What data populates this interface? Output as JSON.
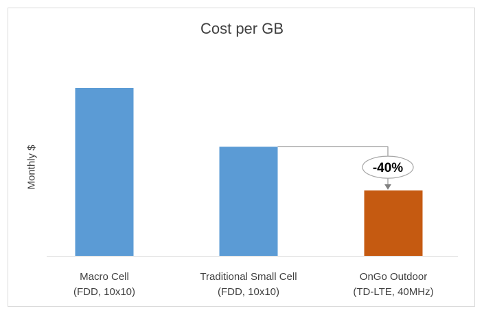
{
  "chart_data": {
    "type": "bar",
    "title": "Cost per GB",
    "xlabel": "",
    "ylabel": "Monthly $",
    "ylim": [
      0,
      100
    ],
    "y_ticks_shown": false,
    "grid": false,
    "legend": "none",
    "categories": [
      {
        "line1": "Macro Cell",
        "line2": "(FDD, 10x10)"
      },
      {
        "line1": "Traditional Small Cell",
        "line2": "(FDD, 10x10)"
      },
      {
        "line1": "OnGo Outdoor",
        "line2": "(TD-LTE, 40MHz)"
      }
    ],
    "values": [
      100,
      65,
      39
    ],
    "colors": [
      "#5b9bd5",
      "#5b9bd5",
      "#c55a11"
    ],
    "annotation": {
      "text": "-40%",
      "from_category": 1,
      "to_category": 2,
      "line_color": "#808080"
    },
    "axis_color": "#d9d9d9"
  }
}
